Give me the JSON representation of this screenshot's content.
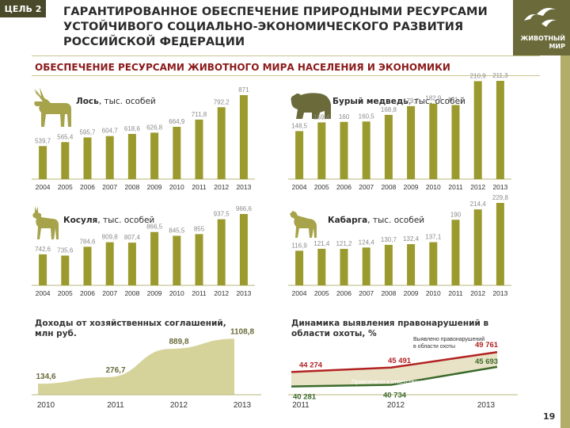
{
  "header": {
    "goal_badge": "ЦЕЛЬ 2",
    "title_line1": "ГАРАНТИРОВАННОЕ ОБЕСПЕЧЕНИЕ ПРИРОДНЫМИ РЕСУРСАМИ",
    "title_line2": "УСТОЙЧИВОГО СОЦИАЛЬНО-ЭКОНОМИЧЕСКОГО РАЗВИТИЯ",
    "title_line3": "РОССИЙСКОЙ ФЕДЕРАЦИИ",
    "brand_line1": "ЖИВОТНЫЙ",
    "brand_line2": "МИР"
  },
  "subtitle": "ОБЕСПЕЧЕНИЕ РЕСУРСАМИ ЖИВОТНОГО МИРА НАСЕЛЕНИЯ И ЭКОНОМИКИ",
  "page_number": "19",
  "colors": {
    "bar": "#9b9a2e",
    "dark": "#6a6a3a",
    "area": "#d6d39a",
    "red": "#b22222",
    "green": "#3a6a2a",
    "label_grey": "#8a8a8a"
  },
  "chart_data": [
    {
      "id": "moose",
      "type": "bar",
      "title_bold": "Лось",
      "title_rest": ", тыс. особей",
      "icon": "moose-icon",
      "categories": [
        "2004",
        "2005",
        "2006",
        "2007",
        "2008",
        "2009",
        "2010",
        "2011",
        "2012",
        "2013"
      ],
      "values": [
        539.7,
        565.4,
        595.7,
        604.7,
        618.6,
        626.8,
        664.9,
        711.8,
        792.2,
        871
      ],
      "labels": [
        "539,7",
        "565,4",
        "595,7",
        "604,7",
        "618,6",
        "626,8",
        "664,9",
        "711,8",
        "792,2",
        "871"
      ]
    },
    {
      "id": "bear",
      "type": "bar",
      "title_bold": "Бурый медведь",
      "title_rest": ", тыс. особей",
      "icon": "bear-icon",
      "categories": [
        "2004",
        "2005",
        "2006",
        "2007",
        "2008",
        "2009",
        "2010",
        "2011",
        "2012",
        "2013"
      ],
      "values": [
        148.5,
        159.4,
        160,
        160.5,
        168.8,
        179.7,
        182.9,
        181.1,
        210.9,
        211.3
      ],
      "labels": [
        "148,5",
        "159,4",
        "160",
        "160,5",
        "168,8",
        "179,7",
        "182,9",
        "181,1",
        "210,9",
        "211,3"
      ]
    },
    {
      "id": "roe",
      "type": "bar",
      "title_bold": "Косуля",
      "title_rest": ", тыс. особей",
      "icon": "roe-deer-icon",
      "categories": [
        "2004",
        "2005",
        "2006",
        "2007",
        "2008",
        "2009",
        "2010",
        "2011",
        "2012",
        "2013"
      ],
      "values": [
        742.6,
        735.6,
        784.6,
        809.8,
        807.4,
        866.5,
        845.5,
        855,
        937.5,
        966.6
      ],
      "labels": [
        "742,6",
        "735,6",
        "784,6",
        "809,8",
        "807,4",
        "866,5",
        "845,5",
        "855",
        "937,5",
        "966,6"
      ]
    },
    {
      "id": "musk",
      "type": "bar",
      "title_bold": "Кабарга",
      "title_rest": ", тыс. особей",
      "icon": "musk-deer-icon",
      "categories": [
        "2004",
        "2005",
        "2006",
        "2007",
        "2008",
        "2009",
        "2010",
        "2011",
        "2012",
        "2013"
      ],
      "values": [
        116.9,
        121.4,
        121.2,
        124.4,
        130.7,
        132.4,
        137.1,
        190,
        214.4,
        229.8
      ],
      "labels": [
        "116,9",
        "121,4",
        "121,2",
        "124,4",
        "130,7",
        "132,4",
        "137,1",
        "190",
        "214,4",
        "229,8"
      ]
    },
    {
      "id": "income",
      "type": "area",
      "title_line1": "Доходы от хозяйственных соглашений,",
      "title_line2": "млн руб.",
      "categories": [
        "2010",
        "2011",
        "2012",
        "2013"
      ],
      "values": [
        134.6,
        276.7,
        889.8,
        1108.8
      ],
      "labels": [
        "134,6",
        "276,7",
        "889,8",
        "1108,8"
      ]
    },
    {
      "id": "violations",
      "type": "line",
      "title_line1": "Динамика выявления правонарушений в",
      "title_line2": "области охоты, %",
      "categories": [
        "2011",
        "2012",
        "2013"
      ],
      "series": [
        {
          "name": "Выявлено правонарушений в области охоты",
          "name_line1": "Выявлено правонарушений",
          "name_line2": "в области охоты",
          "values": [
            44274,
            45491,
            49761
          ],
          "labels": [
            "44 274",
            "45 491",
            "49 761"
          ]
        },
        {
          "name": "Привлечено к ответственности",
          "values": [
            40281,
            40734,
            45693
          ],
          "labels": [
            "40 281",
            "40 734",
            "45 693"
          ]
        }
      ]
    }
  ]
}
